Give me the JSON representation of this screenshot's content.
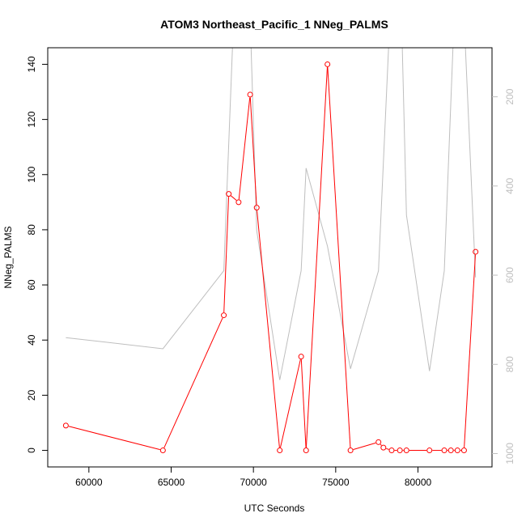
{
  "chart_data": {
    "type": "line",
    "title": "ATOM3 Northeast_Pacific_1 NNeg_PALMS",
    "xlabel": "UTC Seconds",
    "ylabel": "NNeg_PALMS",
    "xlim": [
      57500,
      84500
    ],
    "ylim": [
      -6,
      146
    ],
    "x_ticks": [
      60000,
      65000,
      70000,
      75000,
      80000
    ],
    "x_tick_labels": [
      "60000",
      "65000",
      "70000",
      "75000",
      "80000"
    ],
    "y_ticks": [
      0,
      20,
      40,
      60,
      80,
      100,
      120,
      140
    ],
    "y_tick_labels": [
      "0",
      "20",
      "40",
      "60",
      "80",
      "100",
      "120",
      "140"
    ],
    "y2_reversed": true,
    "y2_ticks": [
      200,
      400,
      600,
      800,
      1000
    ],
    "y2_tick_labels": [
      "200",
      "400",
      "600",
      "800",
      "1000"
    ],
    "y2lim": [
      1030,
      90
    ],
    "series": [
      {
        "role": "primary",
        "color": "#ff0000",
        "marker": "open-circle",
        "x": [
          58600,
          64500,
          68200,
          68500,
          69100,
          69800,
          70200,
          71600,
          72900,
          73200,
          74500,
          75900,
          77600,
          77900,
          78400,
          78900,
          79300,
          80700,
          81600,
          82000,
          82400,
          82800,
          83500
        ],
        "y": [
          9,
          0,
          49,
          93,
          90,
          129,
          88,
          0,
          34,
          0,
          140,
          0,
          3,
          1,
          0,
          0,
          0,
          0,
          0,
          0,
          0,
          0,
          72
        ]
      },
      {
        "role": "secondary",
        "color": "#bebebe",
        "axis": "right",
        "x": [
          58600,
          64500,
          68200,
          68800,
          69800,
          70200,
          71600,
          72900,
          73200,
          74500,
          75900,
          77600,
          78300,
          79000,
          79300,
          80700,
          81600,
          82200,
          82800,
          83500
        ],
        "y": [
          740,
          765,
          590,
          20,
          20,
          500,
          835,
          590,
          360,
          535,
          810,
          590,
          20,
          20,
          465,
          815,
          590,
          20,
          20,
          605
        ]
      }
    ]
  }
}
